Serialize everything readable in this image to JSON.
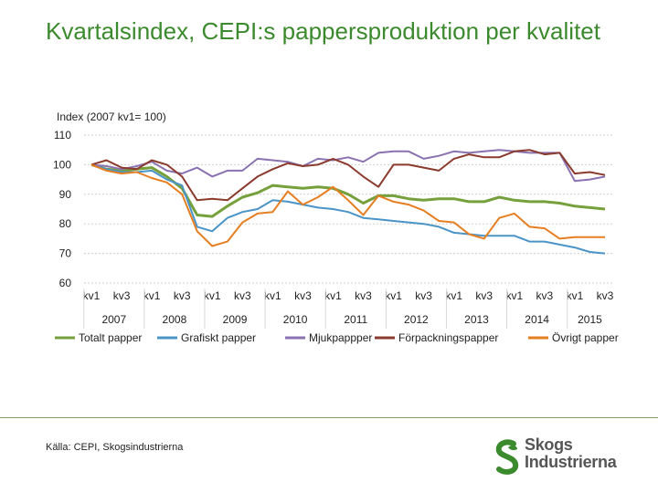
{
  "page": {
    "title": "Kvartalsindex, CEPI:s pappersproduktion per kvalitet",
    "source": "Källa: CEPI, Skogsindustrierna",
    "logo_line1": "Skogs",
    "logo_line2": "Industrierna",
    "accent_color": "#3c8a2e"
  },
  "chart_data": {
    "type": "line",
    "title": "",
    "ylabel": "Index (2007 kv1= 100)",
    "xlabel": "",
    "ylim": [
      60,
      110
    ],
    "yticks": [
      60,
      70,
      80,
      90,
      100,
      110
    ],
    "grid": true,
    "legend_position": "bottom",
    "quarter_labels": [
      "kv1",
      "",
      "kv3",
      "",
      "kv1",
      "",
      "kv3",
      "",
      "kv1",
      "",
      "kv3",
      "",
      "kv1",
      "",
      "kv3",
      "",
      "kv1",
      "",
      "kv3",
      "",
      "kv1",
      "",
      "kv3",
      "",
      "kv1",
      "",
      "kv3",
      "",
      "kv1",
      "",
      "kv3",
      "",
      "kv1",
      "",
      "kv3",
      "",
      "kv1"
    ],
    "years": [
      "2007",
      "2008",
      "2009",
      "2010",
      "2011",
      "2012",
      "2013",
      "2014",
      "2015"
    ],
    "x": [
      "2007 kv1",
      "2007 kv2",
      "2007 kv3",
      "2007 kv4",
      "2008 kv1",
      "2008 kv2",
      "2008 kv3",
      "2008 kv4",
      "2009 kv1",
      "2009 kv2",
      "2009 kv3",
      "2009 kv4",
      "2010 kv1",
      "2010 kv2",
      "2010 kv3",
      "2010 kv4",
      "2011 kv1",
      "2011 kv2",
      "2011 kv3",
      "2011 kv4",
      "2012 kv1",
      "2012 kv2",
      "2012 kv3",
      "2012 kv4",
      "2013 kv1",
      "2013 kv2",
      "2013 kv3",
      "2013 kv4",
      "2014 kv1",
      "2014 kv2",
      "2014 kv3",
      "2014 kv4",
      "2015 kv1",
      "2015 kv2",
      "2015 kv3"
    ],
    "series": [
      {
        "name": "Totalt papper",
        "color": "#76a03c",
        "width": 3,
        "values": [
          100,
          98.5,
          98,
          98.5,
          99,
          96,
          92,
          83,
          82.5,
          86,
          89,
          90.5,
          93,
          92.5,
          92,
          92.5,
          92,
          90,
          87,
          89.5,
          89.5,
          88.5,
          88,
          88.5,
          88.5,
          87.5,
          87.5,
          89,
          88,
          87.5,
          87.5,
          87,
          86,
          85.5,
          85
        ]
      },
      {
        "name": "Grafiskt papper",
        "color": "#4a94c8",
        "width": 2,
        "values": [
          100,
          98.5,
          97.5,
          97.5,
          98,
          95,
          93,
          79,
          77.5,
          82,
          84,
          85,
          88,
          87.5,
          86.5,
          85.5,
          85,
          84,
          82,
          81.5,
          81,
          80.5,
          80,
          79,
          77,
          76.5,
          76,
          76,
          76,
          74,
          74,
          73,
          72,
          70.5,
          70
        ]
      },
      {
        "name": "Mjukpappper",
        "color": "#8a72b0",
        "width": 2,
        "values": [
          100,
          99.5,
          98.5,
          99.5,
          101,
          98,
          97,
          99,
          96,
          98,
          98,
          102,
          101.5,
          101,
          99.5,
          102,
          101.5,
          102.5,
          101,
          104,
          104.5,
          104.5,
          102,
          103,
          104.5,
          104,
          104.5,
          105,
          104.5,
          104,
          104,
          104,
          94.5,
          95,
          96
        ]
      },
      {
        "name": "Förpackningspapper",
        "color": "#8b3a2e",
        "width": 2,
        "values": [
          100,
          101.5,
          99,
          98.5,
          101.5,
          100,
          96,
          88,
          88.5,
          88,
          92,
          96,
          98.5,
          100.5,
          99.5,
          100,
          102,
          100,
          96,
          92.5,
          100,
          100,
          99,
          98,
          102,
          103.5,
          102.5,
          102.5,
          104.5,
          105,
          103.5,
          104,
          97,
          97.5,
          96.5
        ]
      },
      {
        "name": "Övrigt papper",
        "color": "#e67e22",
        "width": 2,
        "values": [
          100,
          98,
          97,
          97.5,
          95.5,
          94,
          90,
          77.5,
          72.5,
          74,
          80.5,
          83.5,
          84,
          91,
          86.5,
          89,
          92.5,
          88,
          83,
          89.5,
          87.5,
          86.5,
          84.5,
          81,
          80.5,
          76.5,
          75,
          82,
          83.5,
          79,
          78.5,
          75,
          75.5,
          75.5,
          75.5
        ]
      }
    ]
  }
}
